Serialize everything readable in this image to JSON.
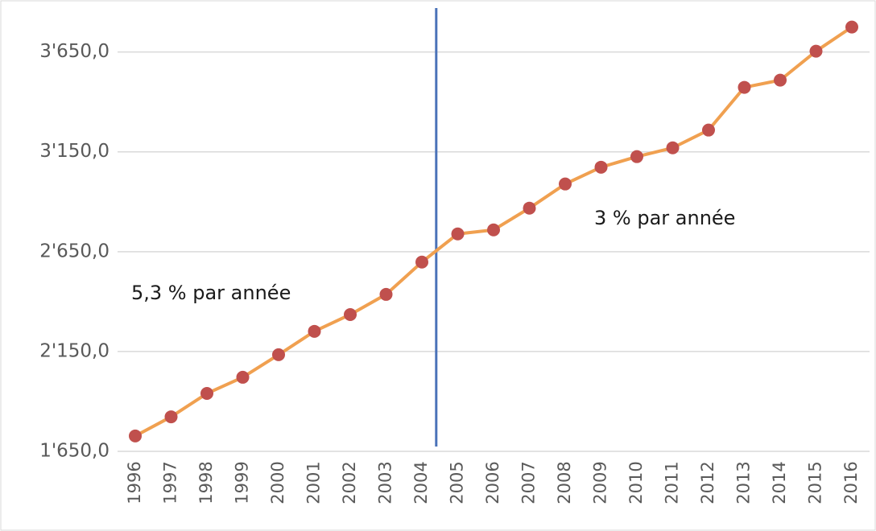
{
  "chart_data": {
    "type": "line",
    "categories": [
      "1996",
      "1997",
      "1998",
      "1999",
      "2000",
      "2001",
      "2002",
      "2003",
      "2004",
      "2005",
      "2006",
      "2007",
      "2008",
      "2009",
      "2010",
      "2011",
      "2012",
      "2013",
      "2014",
      "2015",
      "2016"
    ],
    "series": [
      {
        "color": "#f0a050",
        "marker_color": "#c0504d",
        "values": [
          1727,
          1823,
          1940,
          2021,
          2134,
          2251,
          2335,
          2436,
          2598,
          2739,
          2759,
          2868,
          2989,
          3073,
          3126,
          3170,
          3259,
          3473,
          3509,
          3654,
          3775
        ]
      }
    ],
    "ylim": [
      1650,
      3850
    ],
    "yticks": [
      {
        "value": 1650,
        "label": "1'650,0"
      },
      {
        "value": 2150,
        "label": "2'150,0"
      },
      {
        "value": 2650,
        "label": "2'650,0"
      },
      {
        "value": 3150,
        "label": "3'150,0"
      },
      {
        "value": 3650,
        "label": "3'650,0"
      }
    ],
    "grid": true,
    "annotations": [
      "5,3 % par année",
      "3 % par année"
    ]
  }
}
